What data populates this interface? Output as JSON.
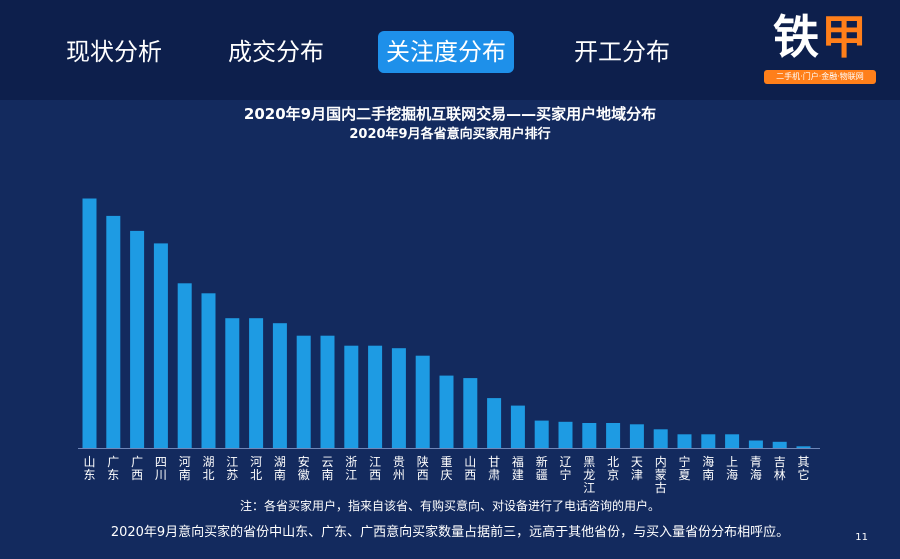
{
  "nav": {
    "tabs": [
      {
        "label": "现状分析",
        "active": false
      },
      {
        "label": "成交分布",
        "active": false
      },
      {
        "label": "关注度分布",
        "active": true
      },
      {
        "label": "开工分布",
        "active": false
      }
    ]
  },
  "logo": {
    "text_main": "铁",
    "text_accent": "甲",
    "slogan": "二手机·门户·金融·物联网"
  },
  "colors": {
    "background": "#132a5e",
    "topbar": "#0d1f4c",
    "bar": "#1e9be3",
    "active_tab": "#1e90ea",
    "logo_accent": "#ff7f1a"
  },
  "chart_data": {
    "type": "bar",
    "title": "2020年9月国内二手挖掘机互联网交易——买家用户地域分布",
    "subtitle": "2020年9月各省意向买家用户排行",
    "xlabel": "",
    "ylabel": "",
    "grid": false,
    "legend": "none",
    "categories": [
      "山东",
      "广东",
      "广西",
      "四川",
      "河南",
      "湖北",
      "江苏",
      "河北",
      "湖南",
      "安徽",
      "云南",
      "浙江",
      "江西",
      "贵州",
      "陕西",
      "重庆",
      "山西",
      "甘肃",
      "福建",
      "新疆",
      "辽宁",
      "黑龙江",
      "北京",
      "天津",
      "内蒙古",
      "宁夏",
      "海南",
      "上海",
      "青海",
      "吉林",
      "其它"
    ],
    "values": [
      100,
      93,
      87,
      82,
      66,
      62,
      52,
      52,
      50,
      45,
      45,
      41,
      41,
      40,
      37,
      29,
      28,
      20,
      17,
      11,
      10.5,
      10,
      10,
      9.5,
      7.5,
      5.5,
      5.5,
      5.5,
      3,
      2.5,
      0.7
    ],
    "ylim": [
      0,
      105
    ]
  },
  "notes": {
    "footnote": "注：各省买家用户，指来自该省、有购买意向、对设备进行了电话咨询的用户。",
    "summary": "2020年9月意向买家的省份中山东、广东、广西意向买家数量占据前三，远高于其他省份，与买入量省份分布相呼应。"
  },
  "page_number": "11"
}
